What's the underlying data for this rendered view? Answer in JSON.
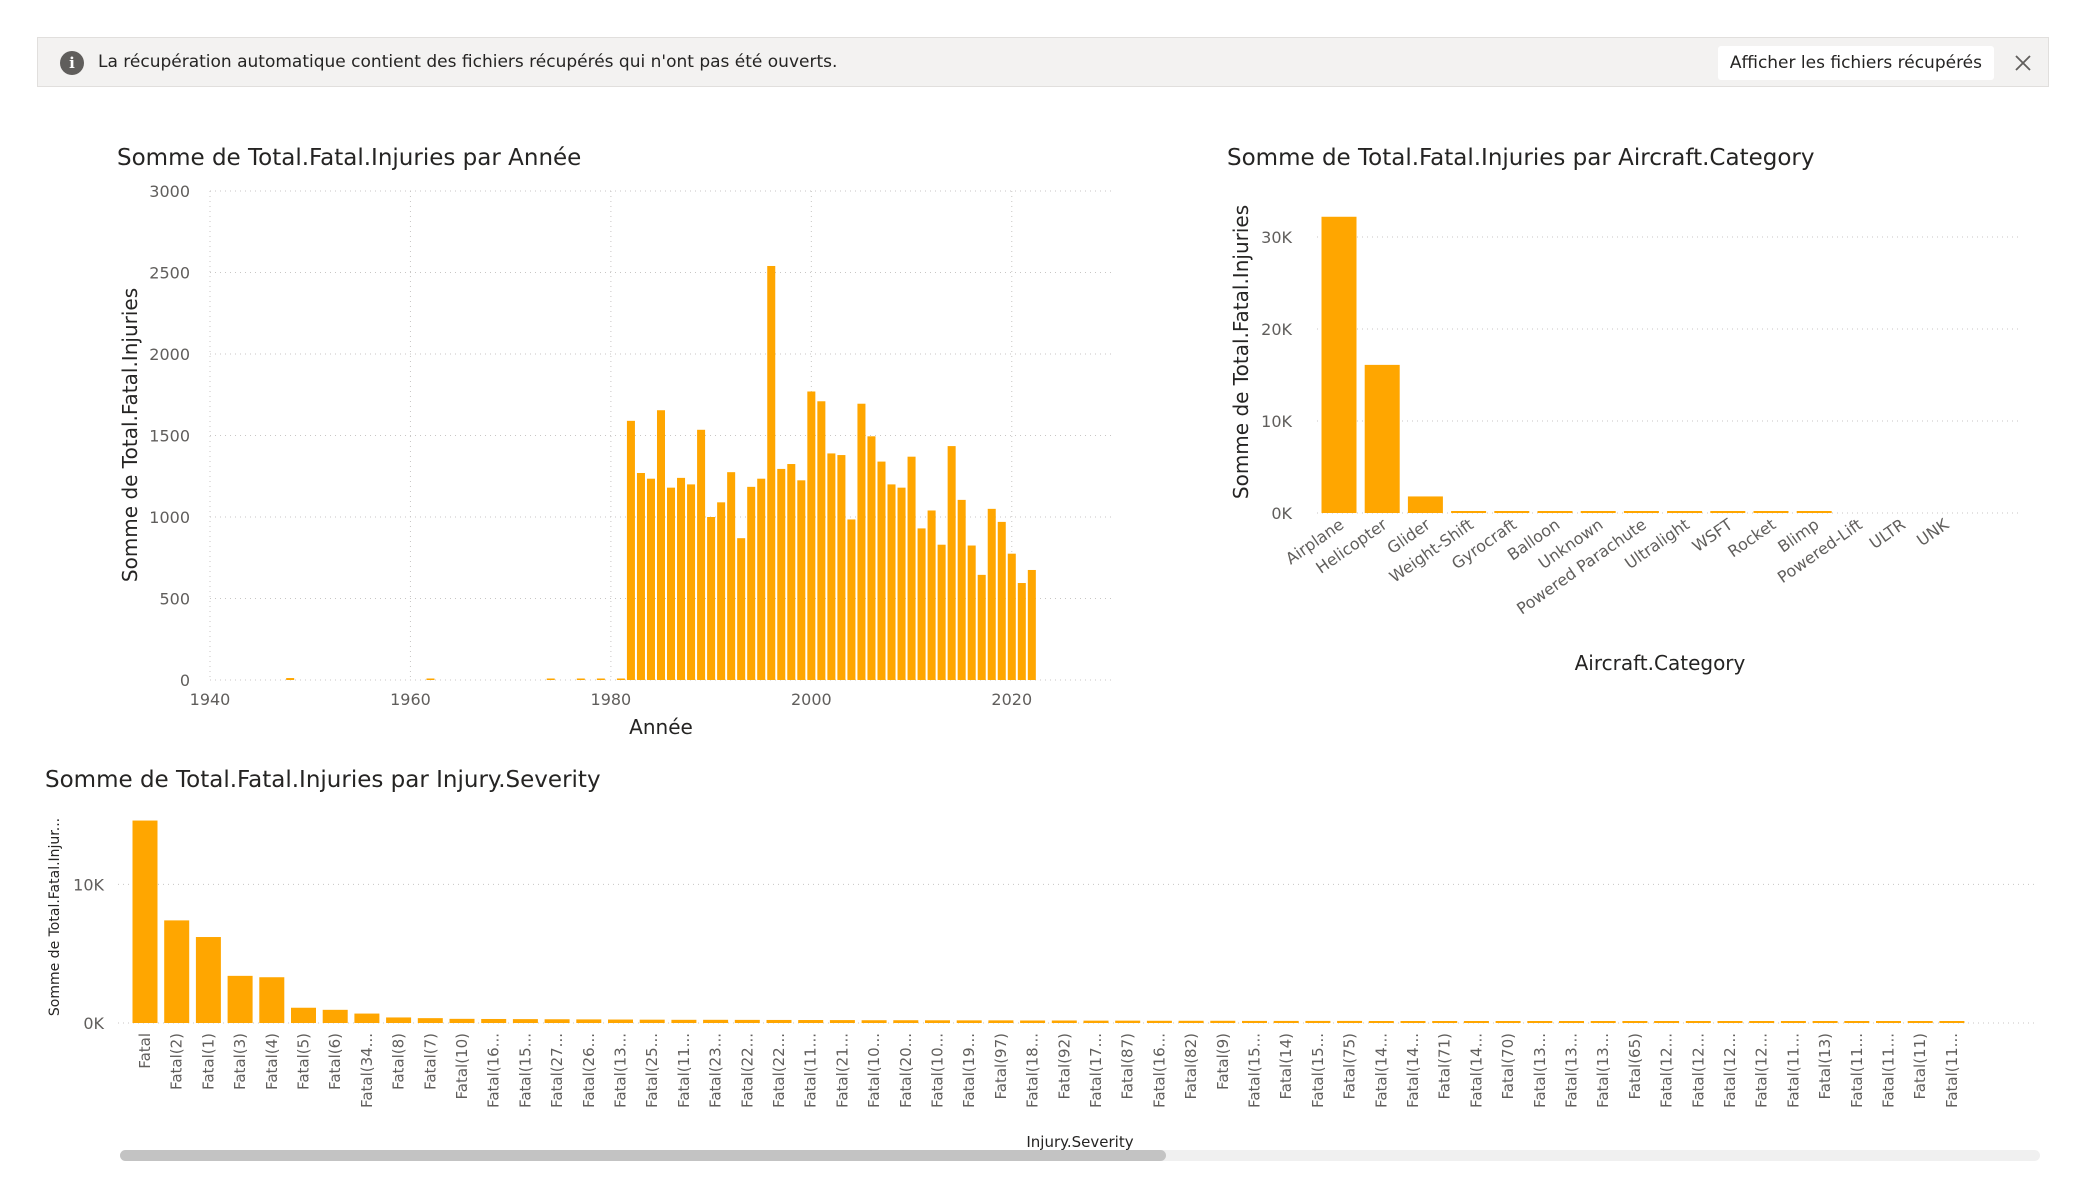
{
  "notification": {
    "message": "La récupération automatique contient des fichiers récupérés qui n'ont pas été ouverts.",
    "button_label": "Afficher les fichiers récupérés",
    "info_icon": "i"
  },
  "colors": {
    "bar": "#FFA600",
    "grid": "#C8C6C4"
  },
  "chart_data": [
    {
      "id": "year",
      "type": "bar",
      "title": "Somme de Total.Fatal.Injuries par Année",
      "xlabel": "Année",
      "ylabel": "Somme de Total.Fatal.Injuries",
      "xlim": [
        1940,
        2030
      ],
      "ylim": [
        0,
        3000
      ],
      "xticks": [
        "1940",
        "1960",
        "1980",
        "2000",
        "2020"
      ],
      "yticks": [
        "0",
        "500",
        "1000",
        "1500",
        "2000",
        "2500",
        "3000"
      ],
      "x": [
        1948,
        1962,
        1974,
        1977,
        1979,
        1981,
        1982,
        1983,
        1984,
        1985,
        1986,
        1987,
        1988,
        1989,
        1990,
        1991,
        1992,
        1993,
        1994,
        1995,
        1996,
        1997,
        1998,
        1999,
        2000,
        2001,
        2002,
        2003,
        2004,
        2005,
        2006,
        2007,
        2008,
        2009,
        2010,
        2011,
        2012,
        2013,
        2014,
        2015,
        2016,
        2017,
        2018,
        2019,
        2020,
        2021,
        2022
      ],
      "values": [
        12,
        8,
        4,
        3,
        5,
        6,
        1590,
        1270,
        1235,
        1655,
        1180,
        1240,
        1200,
        1535,
        1000,
        1090,
        1275,
        870,
        1185,
        1235,
        2540,
        1295,
        1325,
        1225,
        1770,
        1710,
        1390,
        1380,
        985,
        1695,
        1495,
        1340,
        1200,
        1180,
        1370,
        930,
        1040,
        830,
        1435,
        1105,
        825,
        645,
        1050,
        970,
        775,
        595,
        675
      ]
    },
    {
      "id": "category",
      "type": "bar",
      "title": "Somme de Total.Fatal.Injuries par Aircraft.Category",
      "xlabel": "Aircraft.Category",
      "ylabel": "Somme de Total.Fatal.Injuries",
      "ylim": [
        0,
        35000
      ],
      "yticks": [
        "0K",
        "10K",
        "20K",
        "30K"
      ],
      "categories": [
        "Airplane",
        "Helicopter",
        "Glider",
        "Weight-Shift",
        "Gyrocraft",
        "Balloon",
        "Unknown",
        "Powered Parachute",
        "Ultralight",
        "WSFT",
        "Rocket",
        "Blimp",
        "Powered-Lift",
        "ULTR",
        "UNK"
      ],
      "values": [
        32200,
        16100,
        1800,
        150,
        100,
        80,
        60,
        50,
        40,
        30,
        20,
        10,
        0,
        0,
        0
      ]
    },
    {
      "id": "severity",
      "type": "bar",
      "title": "Somme de Total.Fatal.Injuries par Injury.Severity",
      "xlabel": "Injury.Severity",
      "ylabel": "Somme de Total.Fatal.Injur...",
      "ylim": [
        0,
        15000
      ],
      "yticks": [
        "0K",
        "10K"
      ],
      "categories": [
        "Fatal",
        "Fatal(2)",
        "Fatal(1)",
        "Fatal(3)",
        "Fatal(4)",
        "Fatal(5)",
        "Fatal(6)",
        "Fatal(34...",
        "Fatal(8)",
        "Fatal(7)",
        "Fatal(10)",
        "Fatal(16...",
        "Fatal(15...",
        "Fatal(27...",
        "Fatal(26...",
        "Fatal(13...",
        "Fatal(25...",
        "Fatal(11...",
        "Fatal(23...",
        "Fatal(22...",
        "Fatal(22...",
        "Fatal(11...",
        "Fatal(21...",
        "Fatal(10...",
        "Fatal(20...",
        "Fatal(10...",
        "Fatal(19...",
        "Fatal(97)",
        "Fatal(18...",
        "Fatal(92)",
        "Fatal(17...",
        "Fatal(87)",
        "Fatal(16...",
        "Fatal(82)",
        "Fatal(9)",
        "Fatal(15...",
        "Fatal(14)",
        "Fatal(15...",
        "Fatal(75)",
        "Fatal(14...",
        "Fatal(14...",
        "Fatal(71)",
        "Fatal(14...",
        "Fatal(70)",
        "Fatal(13...",
        "Fatal(13...",
        "Fatal(13...",
        "Fatal(65)",
        "Fatal(12...",
        "Fatal(12...",
        "Fatal(12...",
        "Fatal(12...",
        "Fatal(11...",
        "Fatal(13)",
        "Fatal(11...",
        "Fatal(11...",
        "Fatal(11)",
        "Fatal(11..."
      ],
      "values": [
        14600,
        7400,
        6200,
        3400,
        3300,
        1100,
        950,
        680,
        400,
        350,
        300,
        290,
        280,
        270,
        260,
        250,
        240,
        230,
        230,
        225,
        220,
        215,
        210,
        200,
        200,
        195,
        190,
        190,
        180,
        180,
        170,
        170,
        160,
        160,
        160,
        150,
        150,
        150,
        150,
        140,
        140,
        140,
        140,
        140,
        130,
        130,
        130,
        130,
        120,
        120,
        120,
        120,
        110,
        110,
        110,
        110,
        110,
        110
      ]
    }
  ]
}
